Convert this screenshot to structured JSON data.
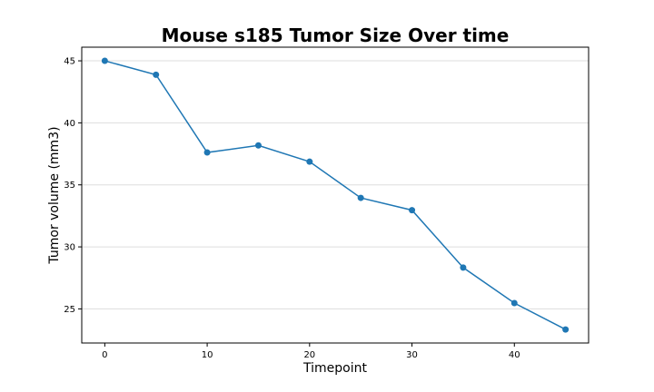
{
  "chart_data": {
    "type": "line",
    "title": "Mouse s185 Tumor Size Over time",
    "xlabel": "Timepoint",
    "ylabel": "Tumor volume (mm3)",
    "x": [
      0,
      5,
      10,
      15,
      20,
      25,
      30,
      35,
      40,
      45
    ],
    "series": [
      {
        "values": [
          45.0,
          43.88,
          37.61,
          38.18,
          36.87,
          33.95,
          32.96,
          28.33,
          25.47,
          23.34
        ]
      }
    ],
    "xlim": [
      -2.25,
      47.25
    ],
    "ylim": [
      22.25,
      46.1
    ],
    "xticks": [
      0,
      10,
      20,
      30,
      40
    ],
    "yticks": [
      25,
      30,
      35,
      40,
      45
    ],
    "grid": "y-axis",
    "colors": {
      "line": "#1f77b4",
      "grid": "#dddddd",
      "frame": "#000000"
    }
  }
}
